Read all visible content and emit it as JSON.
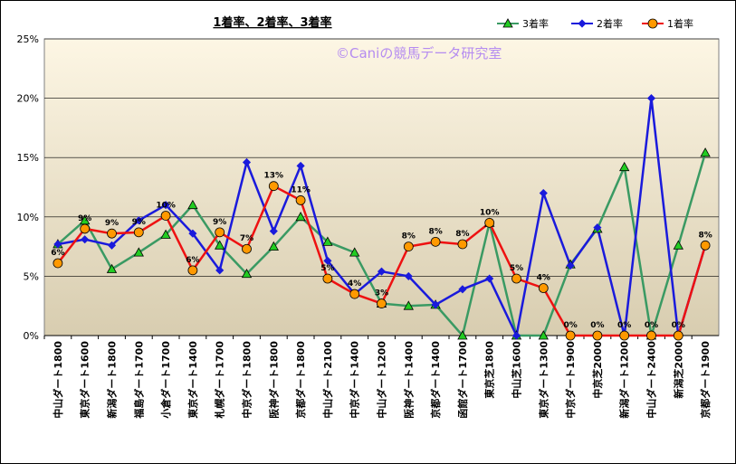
{
  "chart_data": {
    "type": "line",
    "title": "1着率、2着率、3着率",
    "watermark": "©Caniの競馬データ研究室",
    "xlabel": "",
    "ylabel": "",
    "ylim": [
      0,
      25
    ],
    "y_ticks": [
      "0%",
      "5%",
      "10%",
      "15%",
      "20%",
      "25%"
    ],
    "grid": "horizontal",
    "legend_position": "top-right",
    "background": {
      "top": "#fdf6e4",
      "bottom": "#d8cdb0"
    },
    "categories": [
      "中山ダート1800",
      "東京ダート1600",
      "新潟ダート1800",
      "福島ダート1700",
      "小倉ダート1700",
      "東京ダート1400",
      "札幌ダート1700",
      "中京ダート1800",
      "阪神ダート1800",
      "京都ダート1800",
      "中山ダート2100",
      "中京ダート1400",
      "中山ダート1200",
      "阪神ダート1400",
      "京都ダート1400",
      "函館ダート1700",
      "東京芝1800",
      "中山芝1600",
      "東京ダート1300",
      "中京ダート1900",
      "中京芝2000",
      "新潟ダート1200",
      "中山ダート2400",
      "新潟芝2000",
      "京都ダート1900"
    ],
    "series": [
      {
        "name": "3着率",
        "color": "#3a9a63",
        "marker": "triangle",
        "marker_fill": "#22cc22",
        "values": [
          7.7,
          9.7,
          5.6,
          7.0,
          8.5,
          11.0,
          7.6,
          5.2,
          7.5,
          10.0,
          7.9,
          7.0,
          2.7,
          2.5,
          2.6,
          0.0,
          9.5,
          0.0,
          0.0,
          6.0,
          9.0,
          14.2,
          0.0,
          7.6,
          15.4
        ]
      },
      {
        "name": "2着率",
        "color": "#1a1adc",
        "marker": "diamond",
        "marker_fill": "#1a1adc",
        "values": [
          7.7,
          8.1,
          7.6,
          9.7,
          11.0,
          8.6,
          5.5,
          14.6,
          8.8,
          14.3,
          6.3,
          3.5,
          5.4,
          5.0,
          2.6,
          3.9,
          4.8,
          0.0,
          12.0,
          5.9,
          9.1,
          0.0,
          20.0,
          0.0,
          7.6
        ]
      },
      {
        "name": "1着率",
        "color": "#ee1111",
        "marker": "circle",
        "marker_fill": "#ff9900",
        "values": [
          6.1,
          9.0,
          8.6,
          8.7,
          10.1,
          5.5,
          8.7,
          7.3,
          12.6,
          11.4,
          4.8,
          3.5,
          2.7,
          7.5,
          7.9,
          7.7,
          9.5,
          4.8,
          4.0,
          0.0,
          0.0,
          0.0,
          0.0,
          0.0,
          7.6
        ]
      }
    ],
    "data_labels": [
      "6%",
      "9%",
      "9%",
      "9%",
      "10%",
      "6%",
      "9%",
      "7%",
      "13%",
      "11%",
      "5%",
      "4%",
      "3%",
      "8%",
      "8%",
      "8%",
      "10%",
      "5%",
      "4%",
      "0%",
      "0%",
      "0%",
      "0%",
      "0%",
      "8%"
    ]
  }
}
